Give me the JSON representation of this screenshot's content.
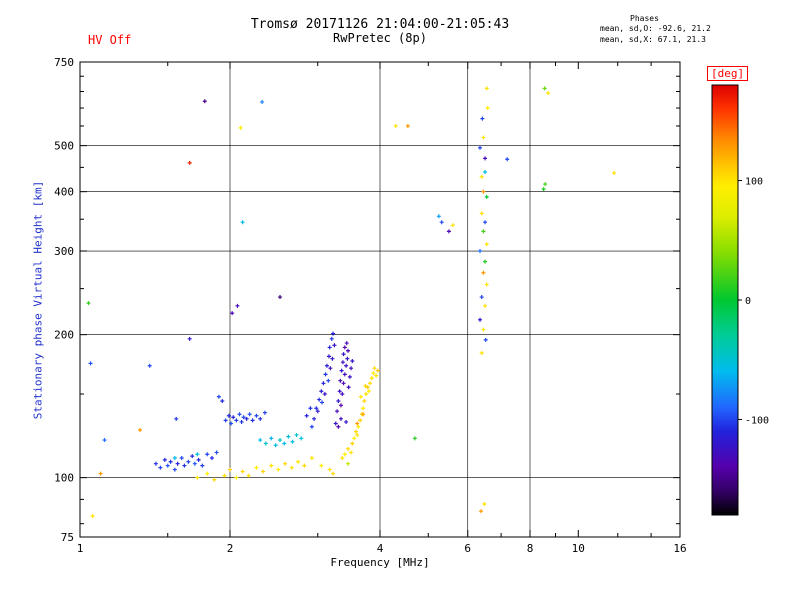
{
  "header": {
    "hv_status": "HV Off",
    "title": "Tromsø 20171126 21:04:00-21:05:43",
    "subtitle": "RwPretec (8p)",
    "stats": {
      "title": "Phases",
      "line_o": "mean, sd,O: -92.6, 21.2",
      "line_x": "mean, sd,X:  67.1, 21.3"
    }
  },
  "colors": {
    "background": "#ffffff",
    "axis": "#000000",
    "tick_label": "#000000",
    "title": "#000000",
    "ylabel": "#2233cc",
    "hv_status": "#ff0000",
    "colorbar_label": "#ff0000"
  },
  "chart_data": {
    "type": "scatter",
    "title": "Tromsø 20171126 21:04:00-21:05:43",
    "subtitle": "RwPretec (8p)",
    "xlabel": "Frequency [MHz]",
    "ylabel": "Stationary phase Virtual Height [km]",
    "xscale": "log",
    "yscale": "log",
    "xlim": [
      1,
      16
    ],
    "ylim": [
      75,
      750
    ],
    "xticks": [
      1,
      2,
      4,
      6,
      8,
      10,
      16
    ],
    "xticks_minor": [
      1.5,
      3,
      5,
      7,
      9,
      12,
      14
    ],
    "yticks": [
      75,
      100,
      200,
      300,
      400,
      500,
      750
    ],
    "yticks_minor": [
      80,
      90,
      150,
      250,
      350,
      450,
      550,
      600,
      650,
      700
    ],
    "x_gridlines": [
      2,
      4,
      6,
      8
    ],
    "y_gridlines": [
      100,
      200,
      300,
      400,
      500
    ],
    "grid": true,
    "colorbar": {
      "label": "[deg]",
      "min": -180,
      "max": 180,
      "ticks": [
        100,
        0,
        -100
      ],
      "stops": [
        [
          -180,
          "#000000"
        ],
        [
          -160,
          "#330066"
        ],
        [
          -140,
          "#5500aa"
        ],
        [
          -110,
          "#2222dd"
        ],
        [
          -90,
          "#2266ff"
        ],
        [
          -60,
          "#00bbee"
        ],
        [
          -30,
          "#00cc99"
        ],
        [
          0,
          "#00c832"
        ],
        [
          10,
          "#22cc22"
        ],
        [
          40,
          "#88dd00"
        ],
        [
          70,
          "#ddee00"
        ],
        [
          95,
          "#ffee00"
        ],
        [
          110,
          "#ffcc00"
        ],
        [
          135,
          "#ff8800"
        ],
        [
          160,
          "#ff3300"
        ],
        [
          180,
          "#dd0000"
        ]
      ]
    },
    "series": [
      {
        "name": "phase_points",
        "units": [
          "MHz",
          "km",
          "deg"
        ],
        "points": [
          [
            1.42,
            107,
            -105
          ],
          [
            1.45,
            105,
            -100
          ],
          [
            1.48,
            109,
            -110
          ],
          [
            1.5,
            106,
            -95
          ],
          [
            1.52,
            108,
            -108
          ],
          [
            1.55,
            104,
            -100
          ],
          [
            1.57,
            107,
            -112
          ],
          [
            1.6,
            110,
            -98
          ],
          [
            1.62,
            106,
            -105
          ],
          [
            1.65,
            108,
            -100
          ],
          [
            1.68,
            111,
            -108
          ],
          [
            1.7,
            107,
            -95
          ],
          [
            1.73,
            109,
            -110
          ],
          [
            1.76,
            106,
            -102
          ],
          [
            1.8,
            112,
            -100
          ],
          [
            1.84,
            110,
            -108
          ],
          [
            1.88,
            113,
            -98
          ],
          [
            1.56,
            133,
            -105
          ],
          [
            1.9,
            148,
            -100
          ],
          [
            1.93,
            145,
            -108
          ],
          [
            1.55,
            110,
            -60
          ],
          [
            1.72,
            112,
            -55
          ],
          [
            1.72,
            100,
            100
          ],
          [
            1.8,
            102,
            95
          ],
          [
            1.86,
            99,
            105
          ],
          [
            1.95,
            101,
            100
          ],
          [
            2.0,
            104,
            110
          ],
          [
            2.06,
            100,
            95
          ],
          [
            2.12,
            103,
            105
          ],
          [
            2.18,
            101,
            100
          ],
          [
            2.26,
            105,
            95
          ],
          [
            2.33,
            103,
            108
          ],
          [
            2.42,
            106,
            100
          ],
          [
            2.5,
            104,
            95
          ],
          [
            2.58,
            107,
            105
          ],
          [
            2.66,
            105,
            100
          ],
          [
            2.74,
            108,
            98
          ],
          [
            2.82,
            106,
            105
          ],
          [
            2.92,
            110,
            100
          ],
          [
            3.05,
            106,
            95
          ],
          [
            3.17,
            104,
            100
          ],
          [
            3.22,
            102,
            105
          ],
          [
            1.96,
            132,
            -100
          ],
          [
            1.99,
            135,
            -108
          ],
          [
            2.01,
            130,
            -95
          ],
          [
            2.03,
            134,
            -110
          ],
          [
            2.06,
            132,
            -102
          ],
          [
            2.09,
            136,
            -98
          ],
          [
            2.11,
            131,
            -105
          ],
          [
            2.13,
            134,
            -100
          ],
          [
            2.16,
            133,
            -112
          ],
          [
            2.19,
            136,
            -95
          ],
          [
            2.22,
            132,
            -105
          ],
          [
            2.26,
            135,
            -100
          ],
          [
            2.3,
            133,
            -108
          ],
          [
            2.35,
            137,
            -102
          ],
          [
            2.3,
            120,
            -60
          ],
          [
            2.36,
            118,
            -50
          ],
          [
            2.42,
            121,
            -65
          ],
          [
            2.47,
            117,
            -55
          ],
          [
            2.52,
            120,
            -45
          ],
          [
            2.57,
            118,
            -60
          ],
          [
            2.62,
            122,
            -50
          ],
          [
            2.67,
            119,
            -58
          ],
          [
            2.72,
            123,
            -48
          ],
          [
            2.78,
            121,
            -55
          ],
          [
            2.85,
            135,
            -110
          ],
          [
            2.9,
            140,
            -105
          ],
          [
            2.92,
            128,
            -100
          ],
          [
            2.95,
            133,
            -112
          ],
          [
            2.98,
            140,
            -105
          ],
          [
            3.0,
            138,
            -120
          ],
          [
            3.02,
            146,
            -108
          ],
          [
            3.05,
            152,
            -115
          ],
          [
            3.06,
            144,
            -100
          ],
          [
            3.08,
            158,
            -112
          ],
          [
            3.1,
            150,
            -125
          ],
          [
            3.11,
            165,
            -105
          ],
          [
            3.13,
            172,
            -115
          ],
          [
            3.15,
            160,
            -100
          ],
          [
            3.16,
            180,
            -120
          ],
          [
            3.17,
            188,
            -110
          ],
          [
            3.18,
            170,
            -130
          ],
          [
            3.2,
            196,
            -105
          ],
          [
            3.21,
            178,
            -118
          ],
          [
            3.22,
            201,
            -110
          ],
          [
            3.24,
            190,
            -125
          ],
          [
            3.26,
            130,
            -125
          ],
          [
            3.28,
            138,
            -132
          ],
          [
            3.3,
            145,
            -120
          ],
          [
            3.3,
            128,
            -135
          ],
          [
            3.32,
            152,
            -125
          ],
          [
            3.33,
            160,
            -130
          ],
          [
            3.34,
            142,
            -140
          ],
          [
            3.35,
            168,
            -120
          ],
          [
            3.36,
            150,
            -130
          ],
          [
            3.37,
            175,
            -125
          ],
          [
            3.38,
            158,
            -135
          ],
          [
            3.38,
            182,
            -120
          ],
          [
            3.4,
            165,
            -130
          ],
          [
            3.4,
            188,
            -138
          ],
          [
            3.42,
            172,
            -125
          ],
          [
            3.43,
            192,
            -130
          ],
          [
            3.44,
            178,
            -120
          ],
          [
            3.45,
            185,
            -135
          ],
          [
            3.46,
            155,
            -130
          ],
          [
            3.48,
            163,
            -126
          ],
          [
            3.5,
            170,
            -130
          ],
          [
            3.52,
            176,
            -122
          ],
          [
            3.34,
            133,
            -128
          ],
          [
            3.42,
            131,
            -122
          ],
          [
            3.36,
            110,
            100
          ],
          [
            3.4,
            112,
            95
          ],
          [
            3.45,
            115,
            105
          ],
          [
            3.5,
            113,
            100
          ],
          [
            3.52,
            118,
            110
          ],
          [
            3.55,
            121,
            95
          ],
          [
            3.58,
            125,
            105
          ],
          [
            3.6,
            123,
            100
          ],
          [
            3.62,
            128,
            95
          ],
          [
            3.65,
            132,
            108
          ],
          [
            3.68,
            136,
            100
          ],
          [
            3.7,
            140,
            95
          ],
          [
            3.72,
            145,
            105
          ],
          [
            3.75,
            150,
            100
          ],
          [
            3.78,
            155,
            110
          ],
          [
            3.8,
            152,
            95
          ],
          [
            3.82,
            158,
            105
          ],
          [
            3.85,
            162,
            100
          ],
          [
            3.88,
            166,
            95
          ],
          [
            3.9,
            170,
            105
          ],
          [
            3.93,
            164,
            100
          ],
          [
            3.96,
            168,
            110
          ],
          [
            3.6,
            130,
            128
          ],
          [
            3.7,
            136,
            125
          ],
          [
            3.45,
            107,
            60
          ],
          [
            3.66,
            148,
            100
          ],
          [
            3.74,
            156,
            105
          ],
          [
            2.02,
            222,
            -135
          ],
          [
            2.07,
            230,
            -130
          ],
          [
            2.52,
            240,
            -155
          ],
          [
            1.66,
            196,
            -120
          ],
          [
            2.12,
            345,
            -60
          ],
          [
            1.38,
            172,
            -100
          ],
          [
            1.05,
            174,
            -95
          ],
          [
            1.04,
            233,
            15
          ],
          [
            1.12,
            120,
            -90
          ],
          [
            1.32,
            126,
            130
          ],
          [
            1.1,
            102,
            130
          ],
          [
            1.06,
            83,
            100
          ],
          [
            1.66,
            460,
            168
          ],
          [
            1.78,
            620,
            -150
          ],
          [
            2.1,
            545,
            95
          ],
          [
            2.32,
            618,
            -80
          ],
          [
            4.3,
            550,
            100
          ],
          [
            4.55,
            550,
            130
          ],
          [
            4.7,
            121,
            10
          ],
          [
            5.25,
            355,
            -70
          ],
          [
            5.32,
            345,
            -100
          ],
          [
            5.5,
            330,
            -135
          ],
          [
            5.6,
            340,
            100
          ],
          [
            11.8,
            438,
            100
          ],
          [
            7.2,
            468,
            -100
          ],
          [
            8.56,
            660,
            30
          ],
          [
            8.7,
            645,
            100
          ],
          [
            8.58,
            415,
            20
          ],
          [
            8.52,
            405,
            10
          ],
          [
            6.35,
            495,
            -100
          ],
          [
            6.45,
            520,
            100
          ],
          [
            6.5,
            470,
            -130
          ],
          [
            6.55,
            660,
            100
          ],
          [
            6.4,
            430,
            100
          ],
          [
            6.5,
            440,
            -60
          ],
          [
            6.45,
            400,
            130
          ],
          [
            6.55,
            390,
            0
          ],
          [
            6.4,
            360,
            100
          ],
          [
            6.5,
            345,
            -100
          ],
          [
            6.45,
            330,
            20
          ],
          [
            6.55,
            310,
            100
          ],
          [
            6.35,
            300,
            -90
          ],
          [
            6.5,
            285,
            10
          ],
          [
            6.45,
            270,
            130
          ],
          [
            6.55,
            255,
            100
          ],
          [
            6.4,
            240,
            -100
          ],
          [
            6.5,
            230,
            100
          ],
          [
            6.35,
            215,
            -120
          ],
          [
            6.45,
            205,
            100
          ],
          [
            6.52,
            195,
            -100
          ],
          [
            6.4,
            183,
            100
          ],
          [
            6.38,
            85,
            130
          ],
          [
            6.48,
            88,
            100
          ],
          [
            6.42,
            570,
            -100
          ],
          [
            6.58,
            600,
            95
          ]
        ]
      }
    ]
  }
}
